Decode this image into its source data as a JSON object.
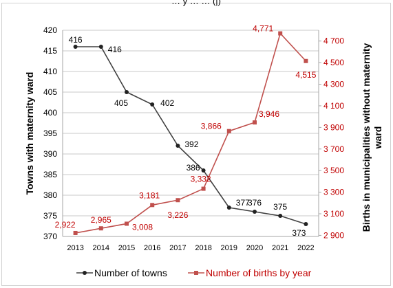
{
  "chart_data": {
    "type": "line",
    "title_fragment": "… y …                               … (|)",
    "categories": [
      "2013",
      "2014",
      "2015",
      "2016",
      "2017",
      "2018",
      "2019",
      "2020",
      "2021",
      "2022"
    ],
    "y_left_label": "Towns with maternity ward",
    "y_right_label_line1": "Births in municipalities without maternity",
    "y_right_label_line2": "ward",
    "y_left_ticks": [
      "370",
      "375",
      "380",
      "385",
      "390",
      "395",
      "400",
      "405",
      "410",
      "415",
      "420"
    ],
    "y_left_lim": [
      370,
      420
    ],
    "y_right_ticks": [
      "2 900",
      "3 100",
      "3 300",
      "3 500",
      "3 700",
      "3 900",
      "4 100",
      "4 300",
      "4 500",
      "4 700"
    ],
    "y_right_lim": [
      2890,
      4800
    ],
    "grid": true,
    "legend_position": "bottom",
    "colors": {
      "towns": "#404040",
      "births": "#c0504d",
      "births_text": "#c00000"
    },
    "series": [
      {
        "name": "Number of towns",
        "axis": "left",
        "values": [
          416,
          416,
          405,
          402,
          392,
          386,
          377,
          376,
          375,
          373
        ],
        "labels": [
          "416",
          "416",
          "405",
          "402",
          "392",
          "386",
          "377",
          "376",
          "375",
          "373"
        ]
      },
      {
        "name": "Number of births by year",
        "axis": "right",
        "values": [
          2922,
          2965,
          3008,
          3181,
          3226,
          3332,
          3866,
          3946,
          4771,
          4515
        ],
        "labels": [
          "2,922",
          "2,965",
          "3,008",
          "3,181",
          "3,226",
          "3,332",
          "3,866",
          "3,946",
          "4,771",
          "4,515"
        ]
      }
    ]
  }
}
